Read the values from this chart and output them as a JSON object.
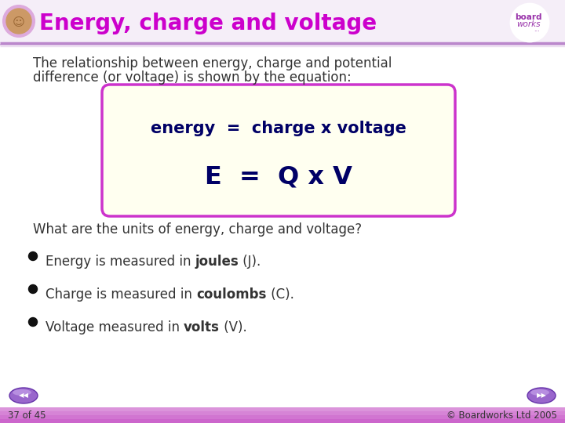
{
  "title": "Energy, charge and voltage",
  "title_color": "#cc00cc",
  "bg_color": "#ffffff",
  "header_bg": "#f5eef8",
  "header_line_color": "#bb88cc",
  "intro_text_line1": "The relationship between energy, charge and potential",
  "intro_text_line2": "difference (or voltage) is shown by the equation:",
  "box_bg": "#fffff0",
  "box_border": "#cc33cc",
  "eq_line1": "energy  =  charge x voltage",
  "eq_line2": "E  =  Q x V",
  "eq_color": "#000066",
  "question": "What are the units of energy, charge and voltage?",
  "text_color": "#333333",
  "bullets": [
    {
      "normal": "Energy is measured in ",
      "bold": "joules",
      "end": " (J)."
    },
    {
      "normal": "Charge is measured in ",
      "bold": "coulombs",
      "end": " (C)."
    },
    {
      "normal": "Voltage measured in ",
      "bold": "volts",
      "end": " (V)."
    }
  ],
  "footer_text": "© Boardworks Ltd 2005",
  "page_text": "37 of 45",
  "footer_bar_color": "#cc66cc",
  "footer_bg": "#f0e8f8",
  "nav_btn_color": "#9966bb"
}
